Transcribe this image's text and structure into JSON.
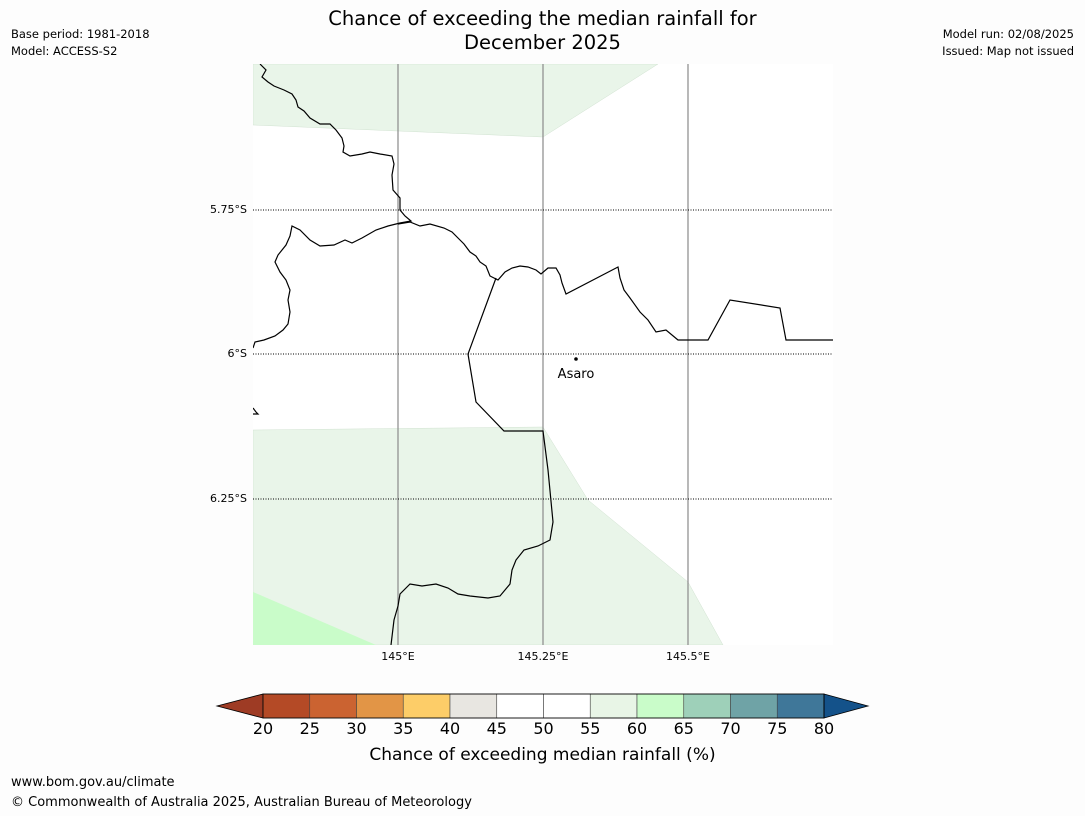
{
  "title_line1": "Chance of exceeding the median rainfall for",
  "title_line2": "December 2025",
  "meta_left": {
    "base_period": "Base period: 1981-2018",
    "model": "Model: ACCESS-S2"
  },
  "meta_right": {
    "model_run": "Model run: 02/08/2025",
    "issued": "Issued: Map not issued"
  },
  "map": {
    "place_label": "Asaro",
    "lat_labels": [
      "5.75°S",
      "6°S",
      "6.25°S"
    ],
    "lon_labels": [
      "145°E",
      "145.25°E",
      "145.5°E"
    ]
  },
  "colorbar": {
    "ticks": [
      "20",
      "25",
      "30",
      "35",
      "40",
      "45",
      "50",
      "55",
      "60",
      "65",
      "70",
      "75",
      "80"
    ],
    "colors": [
      "#9e3b24",
      "#b44a26",
      "#cb6331",
      "#e29546",
      "#fdcd68",
      "#e8e6e1",
      "#ffffff",
      "#ffffff",
      "#e8f5e6",
      "#c9fcc9",
      "#9ed0b9",
      "#6fa3a6",
      "#3f7799",
      "#14528a"
    ],
    "label": "Chance of exceeding median rainfall (%)"
  },
  "footer": {
    "url": "www.bom.gov.au/climate",
    "copyright": "© Commonwealth of Australia 2025, Australian Bureau of Meteorology"
  }
}
